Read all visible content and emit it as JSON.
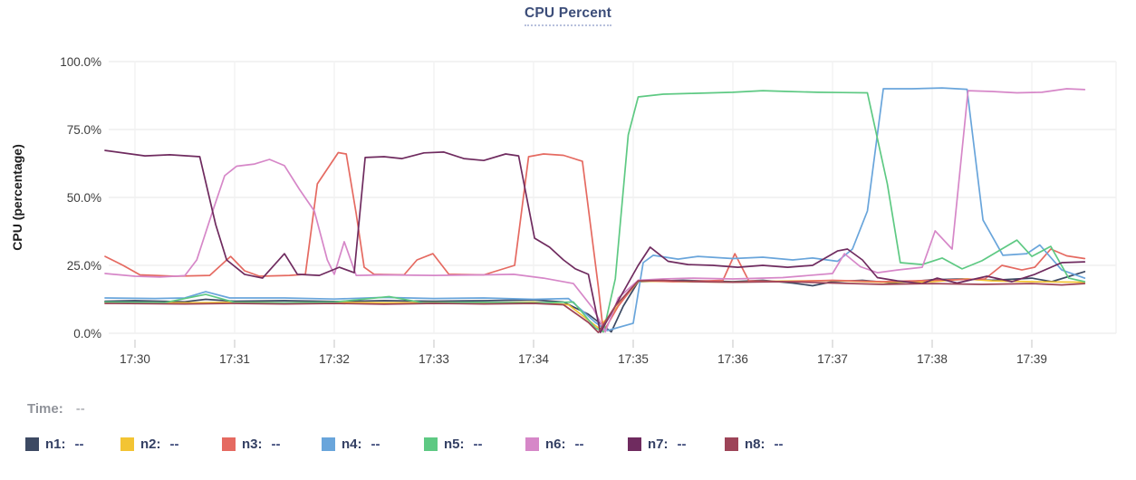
{
  "title": {
    "text": "CPU Percent"
  },
  "readout": {
    "time_label": "Time:",
    "time_value": "--"
  },
  "legend": {
    "items": [
      {
        "label": "n1:",
        "value": "--",
        "color": "#3d4a63"
      },
      {
        "label": "n2:",
        "value": "--",
        "color": "#f3c433"
      },
      {
        "label": "n3:",
        "value": "--",
        "color": "#e56a61"
      },
      {
        "label": "n4:",
        "value": "--",
        "color": "#69a5db"
      },
      {
        "label": "n5:",
        "value": "--",
        "color": "#5ec983"
      },
      {
        "label": "n6:",
        "value": "--",
        "color": "#d687c8"
      },
      {
        "label": "n7:",
        "value": "--",
        "color": "#6f2b5f"
      },
      {
        "label": "n8:",
        "value": "--",
        "color": "#9d4458"
      }
    ]
  },
  "chart_data": {
    "type": "line",
    "title": "CPU Percent",
    "xlabel": "",
    "ylabel": "CPU (percentage)",
    "ylim": [
      0,
      100
    ],
    "grid": true,
    "legend_position": "bottom",
    "yticks": [
      {
        "value": 0,
        "label": "0.0%"
      },
      {
        "value": 25,
        "label": "25.0%"
      },
      {
        "value": 50,
        "label": "50.0%"
      },
      {
        "value": 75,
        "label": "75.0%"
      },
      {
        "value": 100,
        "label": "100.0%"
      }
    ],
    "xticks": [
      {
        "t": 0,
        "label": "17:30"
      },
      {
        "t": 1,
        "label": "17:31"
      },
      {
        "t": 2,
        "label": "17:32"
      },
      {
        "t": 3,
        "label": "17:33"
      },
      {
        "t": 4,
        "label": "17:34"
      },
      {
        "t": 5,
        "label": "17:35"
      },
      {
        "t": 6,
        "label": "17:36"
      },
      {
        "t": 7,
        "label": "17:37"
      },
      {
        "t": 8,
        "label": "17:38"
      },
      {
        "t": 9,
        "label": "17:39"
      }
    ],
    "x_unit": "minutes after 17:30",
    "series": [
      {
        "name": "n1",
        "color": "#3d4a63",
        "points": [
          [
            -0.3,
            11.8
          ],
          [
            0,
            12
          ],
          [
            0.5,
            11.6
          ],
          [
            0.71,
            12.5
          ],
          [
            1,
            11.8
          ],
          [
            1.5,
            12
          ],
          [
            2,
            11.7
          ],
          [
            2.5,
            12
          ],
          [
            3,
            11.8
          ],
          [
            3.5,
            12
          ],
          [
            4,
            12.3
          ],
          [
            4.3,
            11.5
          ],
          [
            4.55,
            7
          ],
          [
            4.78,
            0.5
          ],
          [
            4.9,
            10
          ],
          [
            5.05,
            19
          ],
          [
            5.5,
            19.5
          ],
          [
            6,
            19
          ],
          [
            6.3,
            19.5
          ],
          [
            6.6,
            18.5
          ],
          [
            6.8,
            17.5
          ],
          [
            7,
            19
          ],
          [
            7.3,
            19.5
          ],
          [
            7.6,
            18.5
          ],
          [
            8,
            19.7
          ],
          [
            8.3,
            20
          ],
          [
            8.6,
            19.5
          ],
          [
            9,
            20.3
          ],
          [
            9.2,
            19
          ],
          [
            9.53,
            22.7
          ]
        ]
      },
      {
        "name": "n2",
        "color": "#f3c433",
        "points": [
          [
            -0.3,
            11.3
          ],
          [
            0.5,
            11.2
          ],
          [
            1,
            11.4
          ],
          [
            1.5,
            11.2
          ],
          [
            2,
            11.4
          ],
          [
            2.5,
            11.2
          ],
          [
            3,
            11.3
          ],
          [
            3.5,
            11.2
          ],
          [
            4,
            11.5
          ],
          [
            4.35,
            10.5
          ],
          [
            4.65,
            2
          ],
          [
            4.8,
            8
          ],
          [
            5.05,
            19.2
          ],
          [
            5.5,
            19
          ],
          [
            6,
            18.8
          ],
          [
            6.5,
            19.2
          ],
          [
            7,
            19.4
          ],
          [
            7.5,
            18.8
          ],
          [
            8,
            19
          ],
          [
            8.35,
            20
          ],
          [
            8.6,
            19.3
          ],
          [
            9,
            19
          ],
          [
            9.53,
            18.8
          ]
        ]
      },
      {
        "name": "n3",
        "color": "#e56a61",
        "points": [
          [
            -0.3,
            28.3
          ],
          [
            -0.12,
            25
          ],
          [
            0.05,
            21.5
          ],
          [
            0.4,
            21
          ],
          [
            0.75,
            21.3
          ],
          [
            0.96,
            28.3
          ],
          [
            1.1,
            23
          ],
          [
            1.25,
            21
          ],
          [
            1.55,
            21.3
          ],
          [
            1.71,
            21.7
          ],
          [
            1.83,
            55
          ],
          [
            2.04,
            66.5
          ],
          [
            2.12,
            66
          ],
          [
            2.22,
            44
          ],
          [
            2.3,
            24.3
          ],
          [
            2.4,
            21.7
          ],
          [
            2.7,
            21.5
          ],
          [
            2.83,
            27
          ],
          [
            2.99,
            29.3
          ],
          [
            3.15,
            21.7
          ],
          [
            3.5,
            21.5
          ],
          [
            3.81,
            25
          ],
          [
            3.95,
            65
          ],
          [
            4.1,
            66
          ],
          [
            4.3,
            65.5
          ],
          [
            4.49,
            63.3
          ],
          [
            4.65,
            17
          ],
          [
            4.7,
            0.5
          ],
          [
            4.85,
            10
          ],
          [
            5.05,
            19.5
          ],
          [
            5.4,
            19
          ],
          [
            5.75,
            19.3
          ],
          [
            5.9,
            19.5
          ],
          [
            6.02,
            29.3
          ],
          [
            6.16,
            19.3
          ],
          [
            6.5,
            19
          ],
          [
            7,
            19.5
          ],
          [
            7.5,
            19
          ],
          [
            8,
            19.5
          ],
          [
            8.53,
            20
          ],
          [
            8.7,
            25
          ],
          [
            8.9,
            23.3
          ],
          [
            9.03,
            24.3
          ],
          [
            9.19,
            31
          ],
          [
            9.35,
            28.5
          ],
          [
            9.53,
            27.5
          ]
        ]
      },
      {
        "name": "n4",
        "color": "#69a5db",
        "points": [
          [
            -0.3,
            13
          ],
          [
            0.2,
            12.8
          ],
          [
            0.5,
            13
          ],
          [
            0.71,
            15.3
          ],
          [
            0.95,
            13
          ],
          [
            1.5,
            13
          ],
          [
            2,
            12.6
          ],
          [
            2.5,
            13.2
          ],
          [
            3,
            12.8
          ],
          [
            3.5,
            13
          ],
          [
            4,
            12.5
          ],
          [
            4.35,
            12.8
          ],
          [
            4.62,
            4
          ],
          [
            4.74,
            1
          ],
          [
            5,
            3.7
          ],
          [
            5.1,
            26
          ],
          [
            5.2,
            28.7
          ],
          [
            5.45,
            27.3
          ],
          [
            5.65,
            28.3
          ],
          [
            6,
            27.5
          ],
          [
            6.3,
            28
          ],
          [
            6.6,
            27
          ],
          [
            6.8,
            27.7
          ],
          [
            7.05,
            26.5
          ],
          [
            7.2,
            31
          ],
          [
            7.35,
            45
          ],
          [
            7.51,
            90
          ],
          [
            7.8,
            90
          ],
          [
            8.1,
            90.3
          ],
          [
            8.35,
            89.8
          ],
          [
            8.51,
            41.7
          ],
          [
            8.71,
            28.7
          ],
          [
            8.95,
            29.3
          ],
          [
            9.08,
            32.5
          ],
          [
            9.3,
            23.3
          ],
          [
            9.53,
            20.3
          ]
        ]
      },
      {
        "name": "n5",
        "color": "#5ec983",
        "points": [
          [
            -0.3,
            11.5
          ],
          [
            0.3,
            11.3
          ],
          [
            0.71,
            14.3
          ],
          [
            1,
            11.4
          ],
          [
            1.5,
            11.2
          ],
          [
            2,
            11.5
          ],
          [
            2.55,
            13.5
          ],
          [
            2.9,
            11.2
          ],
          [
            3.5,
            11.4
          ],
          [
            4,
            11.2
          ],
          [
            4.4,
            11.5
          ],
          [
            4.62,
            2
          ],
          [
            4.7,
            0.5
          ],
          [
            4.82,
            20
          ],
          [
            4.95,
            73
          ],
          [
            5.05,
            87
          ],
          [
            5.3,
            88
          ],
          [
            5.6,
            88.3
          ],
          [
            6,
            88.7
          ],
          [
            6.3,
            89.3
          ],
          [
            6.55,
            89
          ],
          [
            6.85,
            88.7
          ],
          [
            7.1,
            88.6
          ],
          [
            7.35,
            88.5
          ],
          [
            7.55,
            55
          ],
          [
            7.68,
            26
          ],
          [
            7.9,
            25.3
          ],
          [
            8.1,
            27.7
          ],
          [
            8.3,
            23.7
          ],
          [
            8.5,
            26.7
          ],
          [
            8.85,
            34.3
          ],
          [
            9,
            28.3
          ],
          [
            9.19,
            32
          ],
          [
            9.37,
            20.3
          ],
          [
            9.53,
            19
          ]
        ]
      },
      {
        "name": "n6",
        "color": "#d687c8",
        "points": [
          [
            -0.3,
            22
          ],
          [
            0,
            21
          ],
          [
            0.25,
            20.7
          ],
          [
            0.5,
            21.2
          ],
          [
            0.62,
            27
          ],
          [
            0.78,
            45
          ],
          [
            0.9,
            58
          ],
          [
            1.02,
            61.5
          ],
          [
            1.2,
            62.3
          ],
          [
            1.35,
            64
          ],
          [
            1.5,
            61.7
          ],
          [
            1.65,
            53
          ],
          [
            1.8,
            45
          ],
          [
            1.93,
            27
          ],
          [
            2,
            21.7
          ],
          [
            2.1,
            33.7
          ],
          [
            2.22,
            21.3
          ],
          [
            2.5,
            21.5
          ],
          [
            3,
            21.3
          ],
          [
            3.5,
            21.5
          ],
          [
            3.8,
            21.7
          ],
          [
            4.1,
            20.3
          ],
          [
            4.4,
            18.3
          ],
          [
            4.6,
            9
          ],
          [
            4.72,
            0.5
          ],
          [
            4.85,
            13
          ],
          [
            5.05,
            19.5
          ],
          [
            5.3,
            20
          ],
          [
            5.6,
            20.3
          ],
          [
            6,
            20
          ],
          [
            6.5,
            20.5
          ],
          [
            7,
            22
          ],
          [
            7.12,
            29.3
          ],
          [
            7.28,
            24.5
          ],
          [
            7.45,
            22.3
          ],
          [
            7.65,
            23.3
          ],
          [
            7.9,
            24.3
          ],
          [
            8.03,
            37.7
          ],
          [
            8.2,
            31
          ],
          [
            8.36,
            89.3
          ],
          [
            8.6,
            89
          ],
          [
            8.85,
            88.5
          ],
          [
            9.1,
            88.7
          ],
          [
            9.35,
            90
          ],
          [
            9.53,
            89.7
          ]
        ]
      },
      {
        "name": "n7",
        "color": "#6f2b5f",
        "points": [
          [
            -0.3,
            67.3
          ],
          [
            -0.1,
            66.3
          ],
          [
            0.1,
            65.3
          ],
          [
            0.35,
            65.7
          ],
          [
            0.65,
            65
          ],
          [
            0.81,
            40
          ],
          [
            0.92,
            27
          ],
          [
            1.1,
            21.7
          ],
          [
            1.28,
            20.3
          ],
          [
            1.5,
            29.3
          ],
          [
            1.63,
            21.7
          ],
          [
            1.85,
            21.3
          ],
          [
            2.05,
            24.3
          ],
          [
            2.2,
            22.3
          ],
          [
            2.31,
            64.7
          ],
          [
            2.5,
            65
          ],
          [
            2.68,
            64.3
          ],
          [
            2.9,
            66.4
          ],
          [
            3.1,
            66.7
          ],
          [
            3.3,
            64.3
          ],
          [
            3.5,
            63.6
          ],
          [
            3.72,
            66
          ],
          [
            3.85,
            65.3
          ],
          [
            4.01,
            35
          ],
          [
            4.16,
            31.7
          ],
          [
            4.3,
            27
          ],
          [
            4.42,
            23.7
          ],
          [
            4.55,
            21.7
          ],
          [
            4.67,
            0.3
          ],
          [
            4.85,
            12
          ],
          [
            5.05,
            25
          ],
          [
            5.17,
            31.7
          ],
          [
            5.35,
            26.5
          ],
          [
            5.55,
            25.3
          ],
          [
            5.8,
            25
          ],
          [
            6.05,
            24.3
          ],
          [
            6.3,
            25
          ],
          [
            6.55,
            24.3
          ],
          [
            6.8,
            25
          ],
          [
            7.05,
            30.3
          ],
          [
            7.15,
            31
          ],
          [
            7.3,
            27
          ],
          [
            7.45,
            20.5
          ],
          [
            7.65,
            19.3
          ],
          [
            7.9,
            18.3
          ],
          [
            8.05,
            20.3
          ],
          [
            8.25,
            18.5
          ],
          [
            8.55,
            21
          ],
          [
            8.8,
            19
          ],
          [
            9.03,
            21.7
          ],
          [
            9.3,
            26
          ],
          [
            9.53,
            26.3
          ]
        ]
      },
      {
        "name": "n8",
        "color": "#9d4458",
        "points": [
          [
            -0.3,
            11
          ],
          [
            0.5,
            10.8
          ],
          [
            1,
            11
          ],
          [
            1.5,
            10.8
          ],
          [
            2,
            11
          ],
          [
            2.5,
            10.7
          ],
          [
            3,
            11
          ],
          [
            3.5,
            10.8
          ],
          [
            4,
            11
          ],
          [
            4.3,
            10.5
          ],
          [
            4.55,
            4
          ],
          [
            4.65,
            0.3
          ],
          [
            4.82,
            10
          ],
          [
            5.05,
            19.3
          ],
          [
            5.3,
            19.5
          ],
          [
            5.6,
            19
          ],
          [
            6,
            18.8
          ],
          [
            6.5,
            19
          ],
          [
            7,
            18.5
          ],
          [
            7.5,
            18
          ],
          [
            8,
            18.3
          ],
          [
            8.5,
            18
          ],
          [
            9,
            18.3
          ],
          [
            9.3,
            17.8
          ],
          [
            9.53,
            18.3
          ]
        ]
      }
    ]
  }
}
